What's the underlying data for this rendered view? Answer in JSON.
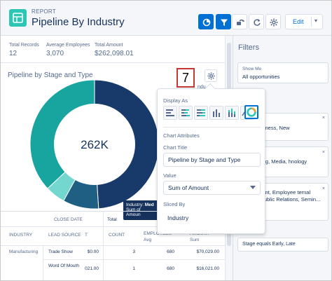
{
  "header": {
    "eyebrow": "REPORT",
    "title": "Pipeline By Industry",
    "edit_label": "Edit",
    "icons": [
      "refresh-chart-icon",
      "filter-icon",
      "share-icon",
      "reload-icon",
      "settings-icon"
    ]
  },
  "summary": [
    {
      "label": "Total Records",
      "value": "12"
    },
    {
      "label": "Average Employees",
      "value": "3,070"
    },
    {
      "label": "Total Amount",
      "value": "$262,098.01"
    }
  ],
  "chart": {
    "title": "Pipeline by Stage and Type",
    "center_label": "262K",
    "callout_number": "7",
    "side_fragment": "ndu",
    "tooltip": {
      "industry_label": "Industry:",
      "industry_value": "Med",
      "line2": "Sum of Amoun"
    }
  },
  "chart_data": {
    "type": "pie",
    "center_label": "262K",
    "slices": [
      {
        "value": 49,
        "color": "#173a6a"
      },
      {
        "value": 9,
        "color": "#1f5f83"
      },
      {
        "value": 5,
        "color": "#73d7d0"
      },
      {
        "value": 37,
        "color": "#18a5a0"
      }
    ]
  },
  "table": {
    "group_headers": {
      "close_date": "CLOSE DATE",
      "total": "Total"
    },
    "columns": {
      "industry": "INDUSTRY",
      "lead_source": "LEAD SOURCE",
      "t_frag": "T",
      "count": "COUNT",
      "employees": "EMPLOYEES",
      "employees_sub": "Avg",
      "amount": "AMOUNT",
      "amount_sub": "Sum"
    },
    "rows": [
      {
        "industry": "Manufacturing",
        "lead_source": "Trade Show",
        "t": "$0.00",
        "count": "3",
        "employees": "680",
        "amount": "$70,029.00"
      },
      {
        "industry": "",
        "lead_source": "Word Of Mouth",
        "t": "021.00",
        "count": "1",
        "employees": "680",
        "amount": "$16,021.00"
      }
    ]
  },
  "filters": {
    "title": "Filters",
    "show_me_label": "Show Me",
    "show_me_value": "All opportunities",
    "card1": "sting Business, New",
    "card2": "nufacturing, Media, hnology",
    "card3": "vertisement, Employee ternal Referral, ublic Relations, Semin...",
    "locked_label": "rs",
    "stage": "Stage equals Early, Late"
  },
  "popover": {
    "display_as": "Display As",
    "chart_attributes": "Chart Attributes",
    "chart_title_label": "Chart Title",
    "chart_title_value": "Pipeline by Stage and Type",
    "value_label": "Value",
    "value_selected": "Sum of Amount",
    "sliced_by_label": "Sliced By",
    "sliced_by_value": "Industry",
    "chart_types": [
      "horizontal-bar-chart-icon",
      "horizontal-stacked-bar-icon",
      "stacked-bar-100-icon",
      "vertical-bar-chart-icon",
      "vertical-stacked-bar-icon",
      "line-chart-icon",
      "donut-chart-icon"
    ]
  }
}
